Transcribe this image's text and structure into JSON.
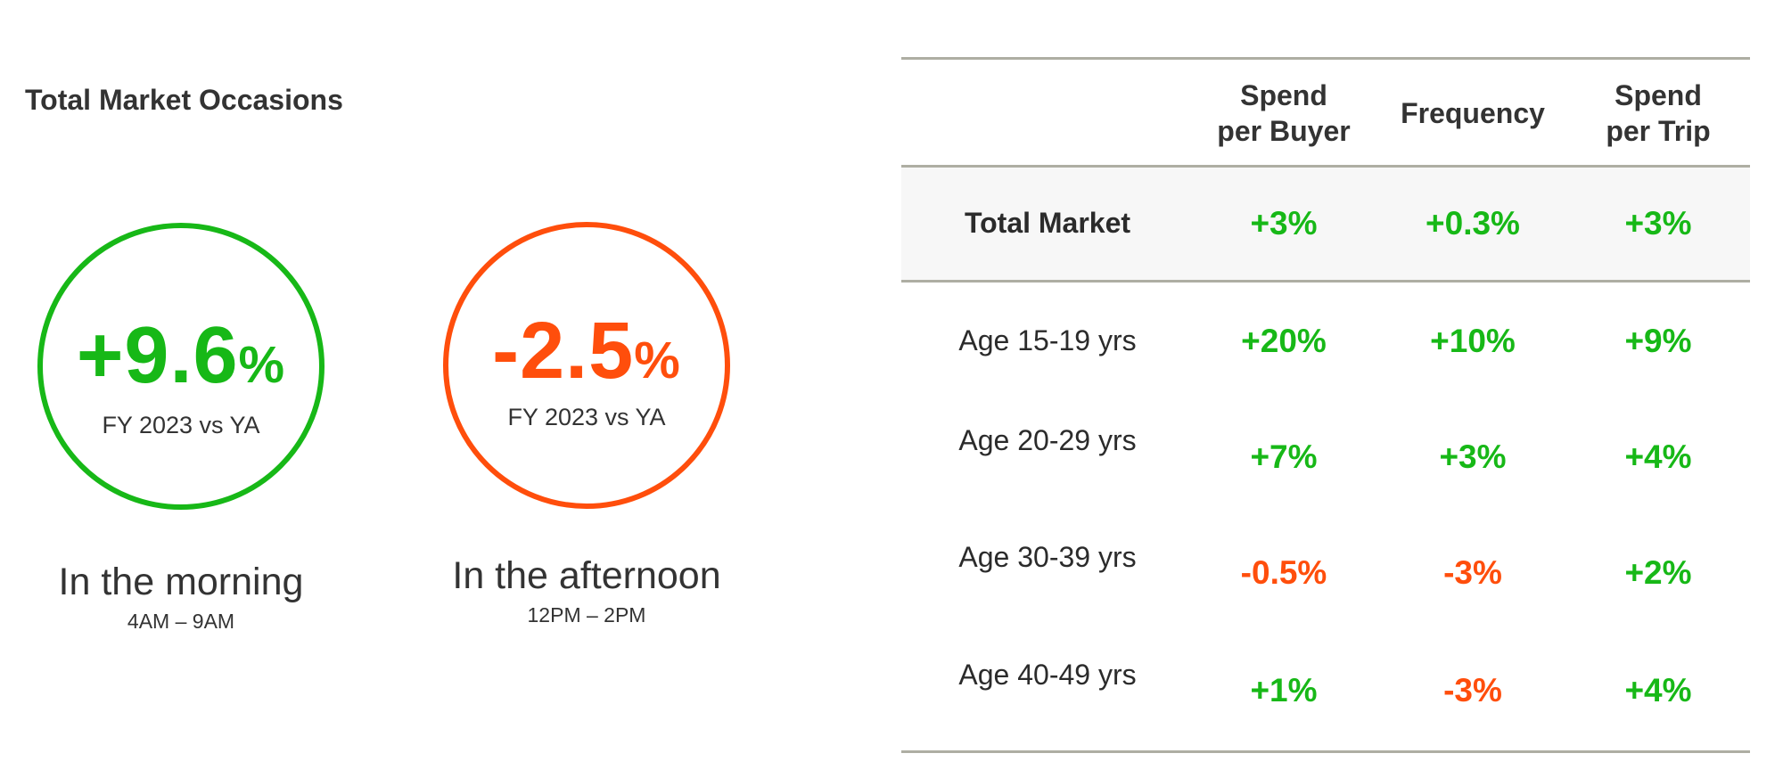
{
  "title": "Total Market Occasions",
  "colors": {
    "positive": "#17b817",
    "negative": "#ff4e0c",
    "rule": "#aeaea3"
  },
  "circles": [
    {
      "value": "+9.6",
      "unit": "%",
      "period": "FY 2023 vs YA",
      "label": "In the morning",
      "time": "4AM – 9AM"
    },
    {
      "value": "-2.5",
      "unit": "%",
      "period": "FY 2023 vs YA",
      "label": "In the afternoon",
      "time": "12PM – 2PM"
    }
  ],
  "table": {
    "headers": [
      "Spend\nper Buyer",
      "Frequency",
      "Spend\nper Trip"
    ],
    "rows": [
      {
        "label": "Total Market",
        "values": [
          "+3%",
          "+0.3%",
          "+3%"
        ]
      },
      {
        "label": "Age 15-19 yrs",
        "values": [
          "+20%",
          "+10%",
          "+9%"
        ]
      },
      {
        "label": "Age 20-29 yrs",
        "values": [
          "+7%",
          "+3%",
          "+4%"
        ]
      },
      {
        "label": "Age 30-39 yrs",
        "values": [
          "-0.5%",
          "-3%",
          "+2%"
        ]
      },
      {
        "label": "Age 40-49 yrs",
        "values": [
          "+1%",
          "-3%",
          "+4%"
        ]
      }
    ]
  }
}
